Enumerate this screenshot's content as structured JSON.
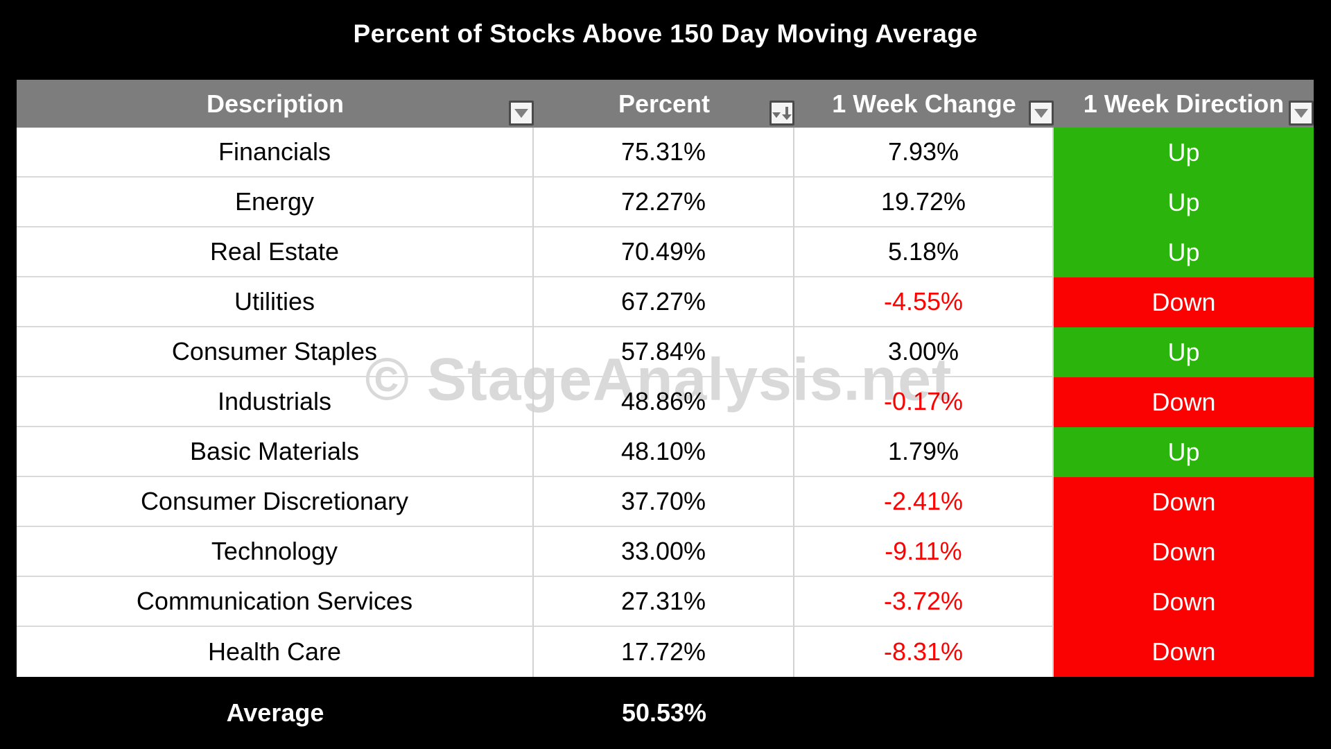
{
  "chart_data": {
    "type": "table",
    "title": "Percent of Stocks Above 150 Day Moving Average",
    "columns": [
      "Description",
      "Percent",
      "1 Week Change",
      "1 Week Direction"
    ],
    "rows": [
      {
        "description": "Financials",
        "percent": "75.31%",
        "week_change": "7.93%",
        "week_direction": "Up"
      },
      {
        "description": "Energy",
        "percent": "72.27%",
        "week_change": "19.72%",
        "week_direction": "Up"
      },
      {
        "description": "Real Estate",
        "percent": "70.49%",
        "week_change": "5.18%",
        "week_direction": "Up"
      },
      {
        "description": "Utilities",
        "percent": "67.27%",
        "week_change": "-4.55%",
        "week_direction": "Down"
      },
      {
        "description": "Consumer Staples",
        "percent": "57.84%",
        "week_change": "3.00%",
        "week_direction": "Up"
      },
      {
        "description": "Industrials",
        "percent": "48.86%",
        "week_change": "-0.17%",
        "week_direction": "Down"
      },
      {
        "description": "Basic Materials",
        "percent": "48.10%",
        "week_change": "1.79%",
        "week_direction": "Up"
      },
      {
        "description": "Consumer Discretionary",
        "percent": "37.70%",
        "week_change": "-2.41%",
        "week_direction": "Down"
      },
      {
        "description": "Technology",
        "percent": "33.00%",
        "week_change": "-9.11%",
        "week_direction": "Down"
      },
      {
        "description": "Communication Services",
        "percent": "27.31%",
        "week_change": "-3.72%",
        "week_direction": "Down"
      },
      {
        "description": "Health Care",
        "percent": "17.72%",
        "week_change": "-8.31%",
        "week_direction": "Down"
      }
    ],
    "summary": {
      "label": "Average",
      "percent": "50.53%"
    }
  },
  "watermark": "© StageAnalysis.net",
  "icons": {
    "filter-dropdown-icon": "▼",
    "filter-sorted-descending-icon": "▼↓"
  },
  "colors": {
    "title_text": "#FFFFFF",
    "header_bg": "#7D7D7D",
    "up_bg": "#2BB40C",
    "down_bg": "#FB0202",
    "negative_text": "#FF0000",
    "watermark_text": "#D9D9D9"
  }
}
